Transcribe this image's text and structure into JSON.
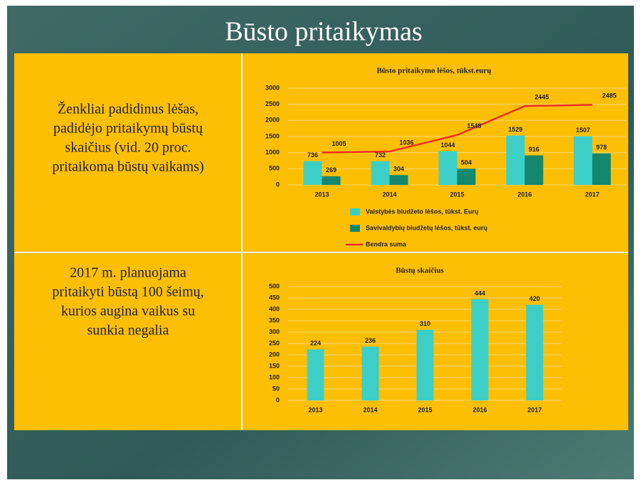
{
  "slide_title": "Būsto pritaikymas",
  "left_texts": [
    [
      "Ženkliai padidinus lėšas,",
      "padidėjo pritaikymų būstų",
      "skaičius (vid. 20 proc.",
      "pritaikoma būstų vaikams)"
    ],
    [
      "2017 m. planuojama",
      "pritaikyti būstą 100 šeimų,",
      "kurios augina vaikus su",
      "sunkia negalia"
    ]
  ],
  "chart_data": [
    {
      "type": "bar",
      "title": "Būsto pritaikymo lėšos, tūkst.eurų",
      "categories": [
        "2013",
        "2014",
        "2015",
        "2016",
        "2017"
      ],
      "series": [
        {
          "name": "Valstybės biudžeto lėšos, tūkst. Eurų",
          "color": "#3ccfc8",
          "values": [
            736,
            732,
            1044,
            1529,
            1507
          ]
        },
        {
          "name": "Savivaldybių biudžetų lėšos, tūkst. eurų",
          "color": "#14876c",
          "values": [
            269,
            304,
            504,
            916,
            978
          ]
        },
        {
          "name": "Bendra suma",
          "color": "#f0301a",
          "type": "line",
          "values": [
            1005,
            1036,
            1548,
            2445,
            2485
          ]
        }
      ],
      "ylim": [
        0,
        3000
      ],
      "yticks": [
        0,
        500,
        1000,
        1500,
        2000,
        2500,
        3000
      ],
      "grid": true,
      "legend": "bottom"
    },
    {
      "type": "bar",
      "title": "Būstų skaičius",
      "categories": [
        "2013",
        "2014",
        "2015",
        "2016",
        "2017"
      ],
      "series": [
        {
          "color": "#3ccfc8",
          "values": [
            224,
            236,
            310,
            444,
            420
          ]
        }
      ],
      "ylim": [
        0,
        500
      ],
      "yticks": [
        0,
        50,
        100,
        150,
        200,
        250,
        300,
        350,
        400,
        450,
        500
      ],
      "grid": true
    }
  ]
}
